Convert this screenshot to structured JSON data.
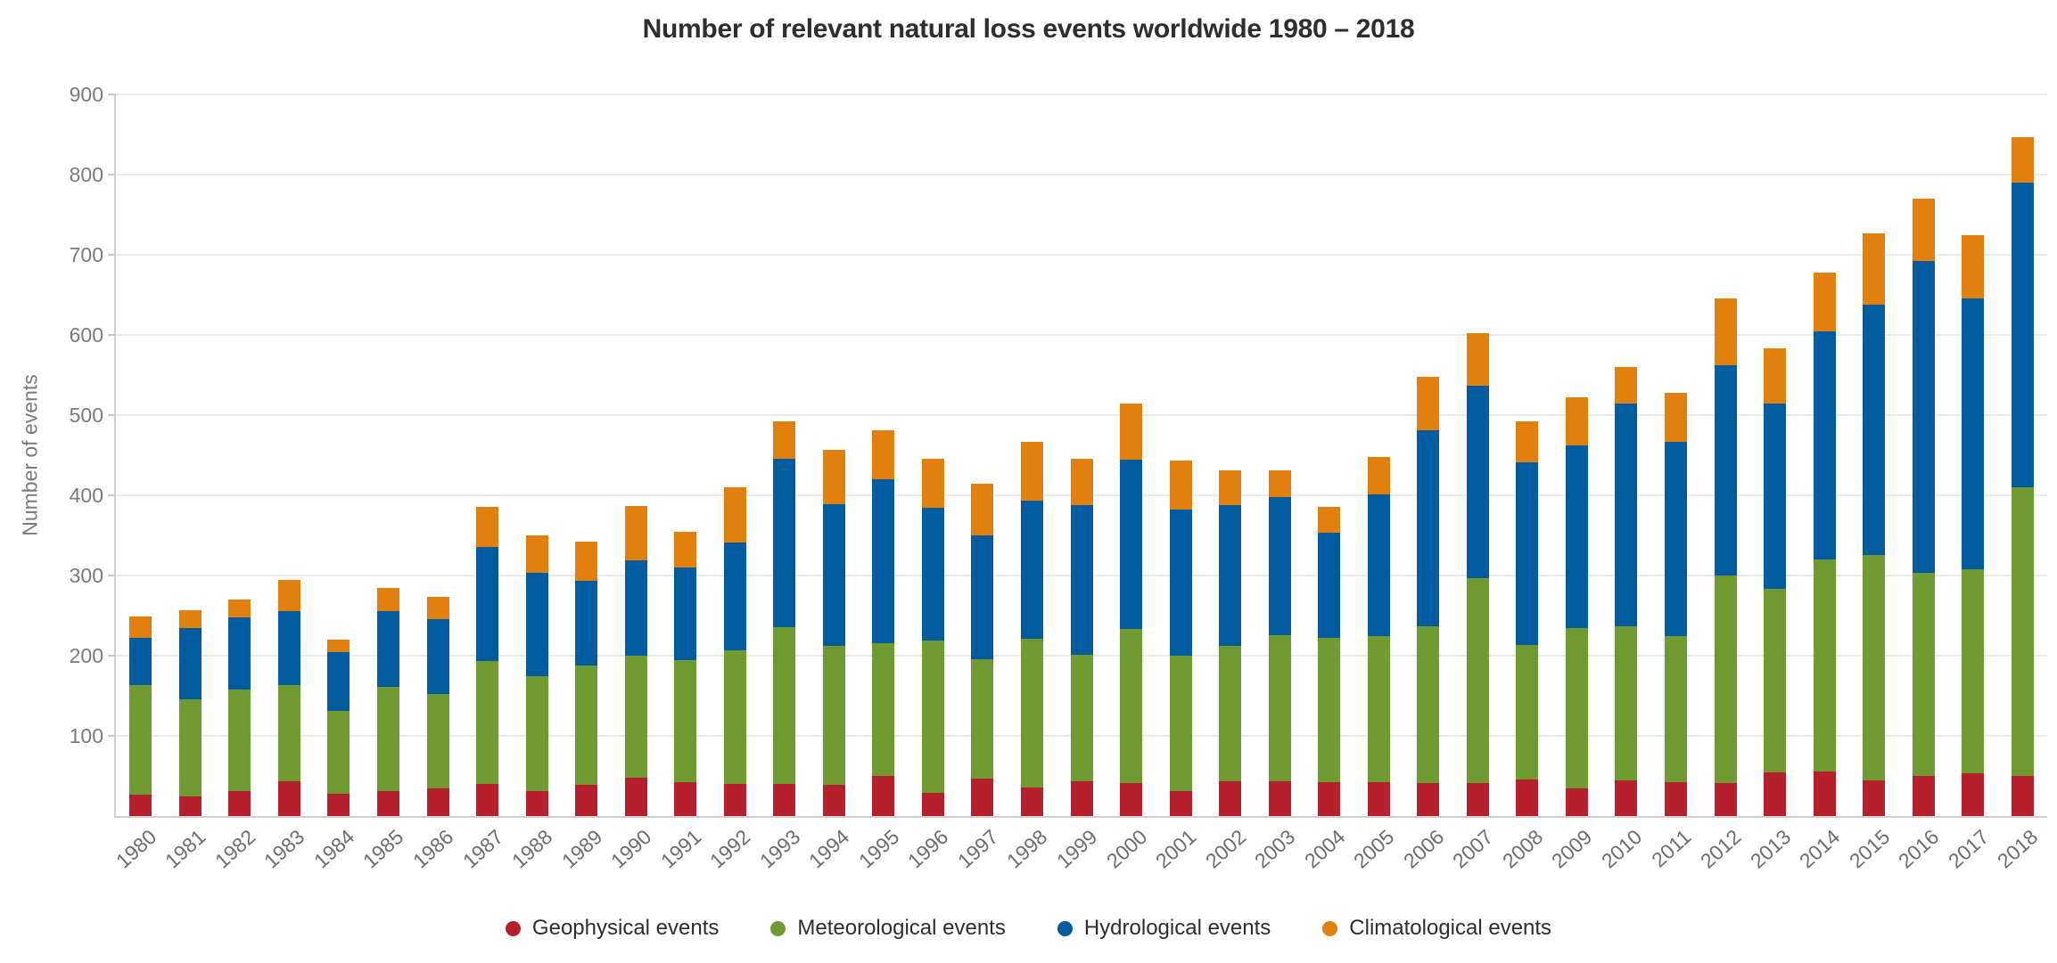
{
  "title": "Number of relevant natural loss events worldwide 1980 – 2018",
  "y_axis": {
    "label": "Number of events",
    "ticks": [
      "100",
      "200",
      "300",
      "400",
      "500",
      "600",
      "700",
      "800",
      "900"
    ],
    "max": 900
  },
  "colors": {
    "geophysical": "#b5202c",
    "meteorological": "#6f9b30",
    "hydrological": "#005c9e",
    "climatological": "#e2800e",
    "gridline": "#eaeaea",
    "axis": "#cfcfcf",
    "tick_text": "#7b7b7b",
    "title_text": "#2e2e2e"
  },
  "legend": {
    "position": "bottom",
    "marker": "dot-icon"
  },
  "chart_data": {
    "type": "bar",
    "stacked": true,
    "title": "Number of relevant natural loss events worldwide 1980 – 2018",
    "xlabel": "",
    "ylabel": "Number of events",
    "ylim": [
      0,
      900
    ],
    "grid": true,
    "legend_position": "bottom",
    "categories": [
      "1980",
      "1981",
      "1982",
      "1983",
      "1984",
      "1985",
      "1986",
      "1987",
      "1988",
      "1989",
      "1990",
      "1991",
      "1992",
      "1993",
      "1994",
      "1995",
      "1996",
      "1997",
      "1998",
      "1999",
      "2000",
      "2001",
      "2002",
      "2003",
      "2004",
      "2005",
      "2006",
      "2007",
      "2008",
      "2009",
      "2010",
      "2011",
      "2012",
      "2013",
      "2014",
      "2015",
      "2016",
      "2017",
      "2018"
    ],
    "series": [
      {
        "name": "Geophysical events",
        "key": "geophysical",
        "color": "#b5202c",
        "values": [
          27,
          25,
          31,
          43,
          28,
          31,
          35,
          40,
          31,
          39,
          48,
          42,
          40,
          40,
          39,
          50,
          29,
          47,
          36,
          43,
          41,
          31,
          43,
          43,
          42,
          42,
          41,
          41,
          46,
          34,
          44,
          42,
          41,
          54,
          56,
          45,
          50,
          53,
          50
        ]
      },
      {
        "name": "Meteorological events",
        "key": "meteorological",
        "color": "#6f9b30",
        "values": [
          136,
          121,
          127,
          120,
          103,
          130,
          117,
          153,
          143,
          149,
          152,
          152,
          167,
          196,
          173,
          166,
          190,
          149,
          185,
          158,
          192,
          169,
          169,
          183,
          180,
          182,
          196,
          256,
          167,
          200,
          193,
          183,
          259,
          229,
          264,
          281,
          253,
          255,
          360
        ]
      },
      {
        "name": "Hydrological events",
        "key": "hydrological",
        "color": "#005c9e",
        "values": [
          59,
          89,
          90,
          93,
          73,
          95,
          94,
          143,
          129,
          105,
          119,
          116,
          134,
          210,
          177,
          204,
          165,
          154,
          172,
          187,
          212,
          182,
          176,
          172,
          131,
          177,
          244,
          240,
          228,
          228,
          278,
          242,
          262,
          232,
          285,
          312,
          389,
          338,
          380
        ]
      },
      {
        "name": "Climatological events",
        "key": "climatological",
        "color": "#e2800e",
        "values": [
          27,
          22,
          22,
          38,
          16,
          28,
          27,
          50,
          47,
          49,
          68,
          45,
          69,
          46,
          68,
          61,
          62,
          64,
          74,
          58,
          70,
          61,
          43,
          33,
          33,
          47,
          67,
          65,
          51,
          60,
          45,
          61,
          84,
          68,
          73,
          89,
          78,
          78,
          57
        ]
      }
    ]
  }
}
